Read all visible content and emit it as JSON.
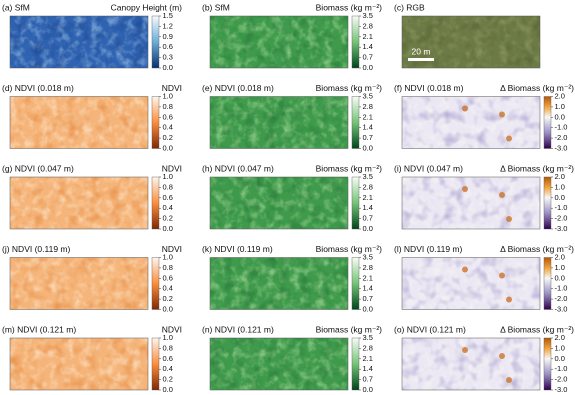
{
  "panels": [
    {
      "label": "(a) SfM",
      "title": "Canopy Height (m)",
      "colorbar": [
        "1.5",
        "1.2",
        "0.9",
        "0.6",
        "0.3",
        "0.0"
      ]
    },
    {
      "label": "(b) SfM",
      "title": "Biomass (kg m⁻²)",
      "colorbar": [
        "3.5",
        "2.8",
        "2.1",
        "1.4",
        "0.7",
        "0.0"
      ]
    },
    {
      "label": "(c) RGB",
      "scale_bar": "20 m"
    },
    {
      "label": "(d) NDVI (0.018 m)",
      "title": "NDVI",
      "colorbar": [
        "1.0",
        "0.8",
        "0.6",
        "0.4",
        "0.2",
        "0.0"
      ]
    },
    {
      "label": "(e) NDVI (0.018 m)",
      "title": "Biomass (kg m⁻²)",
      "colorbar": [
        "3.5",
        "2.8",
        "2.1",
        "1.4",
        "0.7",
        "0.0"
      ]
    },
    {
      "label": "(f) NDVI (0.018 m)",
      "title": "Δ Biomass (kg m⁻²)",
      "colorbar": [
        "2.0",
        "1.0",
        "0.0",
        "-1.0",
        "-2.0",
        "-3.0"
      ]
    },
    {
      "label": "(g) NDVI (0.047 m)",
      "title": "NDVI",
      "colorbar": [
        "1.0",
        "0.8",
        "0.6",
        "0.4",
        "0.2",
        "0.0"
      ]
    },
    {
      "label": "(h) NDVI (0.047 m)",
      "title": "Biomass (kg m⁻²)",
      "colorbar": [
        "3.5",
        "2.8",
        "2.1",
        "1.4",
        "0.7",
        "0.0"
      ]
    },
    {
      "label": "(i) NDVI (0.047 m)",
      "title": "Δ Biomass (kg m⁻²)",
      "colorbar": [
        "2.0",
        "1.0",
        "0.0",
        "-1.0",
        "-2.0",
        "-3.0"
      ]
    },
    {
      "label": "(j) NDVI (0.119 m)",
      "title": "NDVI",
      "colorbar": [
        "1.0",
        "0.8",
        "0.6",
        "0.4",
        "0.2",
        "0.0"
      ]
    },
    {
      "label": "(k) NDVI (0.119 m)",
      "title": "Biomass (kg m⁻²)",
      "colorbar": [
        "3.5",
        "2.8",
        "2.1",
        "1.4",
        "0.7",
        "0.0"
      ]
    },
    {
      "label": "(l) NDVI (0.119 m)",
      "title": "Δ Biomass (kg m⁻²)",
      "colorbar": [
        "2.0",
        "1.0",
        "0.0",
        "-1.0",
        "-2.0",
        "-3.0"
      ]
    },
    {
      "label": "(m) NDVI (0.121 m)",
      "title": "NDVI",
      "colorbar": [
        "1.0",
        "0.8",
        "0.6",
        "0.4",
        "0.2",
        "0.0"
      ]
    },
    {
      "label": "(n) NDVI (0.121 m)",
      "title": "Biomass (kg m⁻²)",
      "colorbar": [
        "3.5",
        "2.8",
        "2.1",
        "1.4",
        "0.7",
        "0.0"
      ]
    },
    {
      "label": "(o) NDVI (0.121 m)",
      "title": "Δ Biomass (kg m⁻²)",
      "colorbar": [
        "2.0",
        "1.0",
        "0.0",
        "-1.0",
        "-2.0",
        "-3.0"
      ]
    }
  ]
}
